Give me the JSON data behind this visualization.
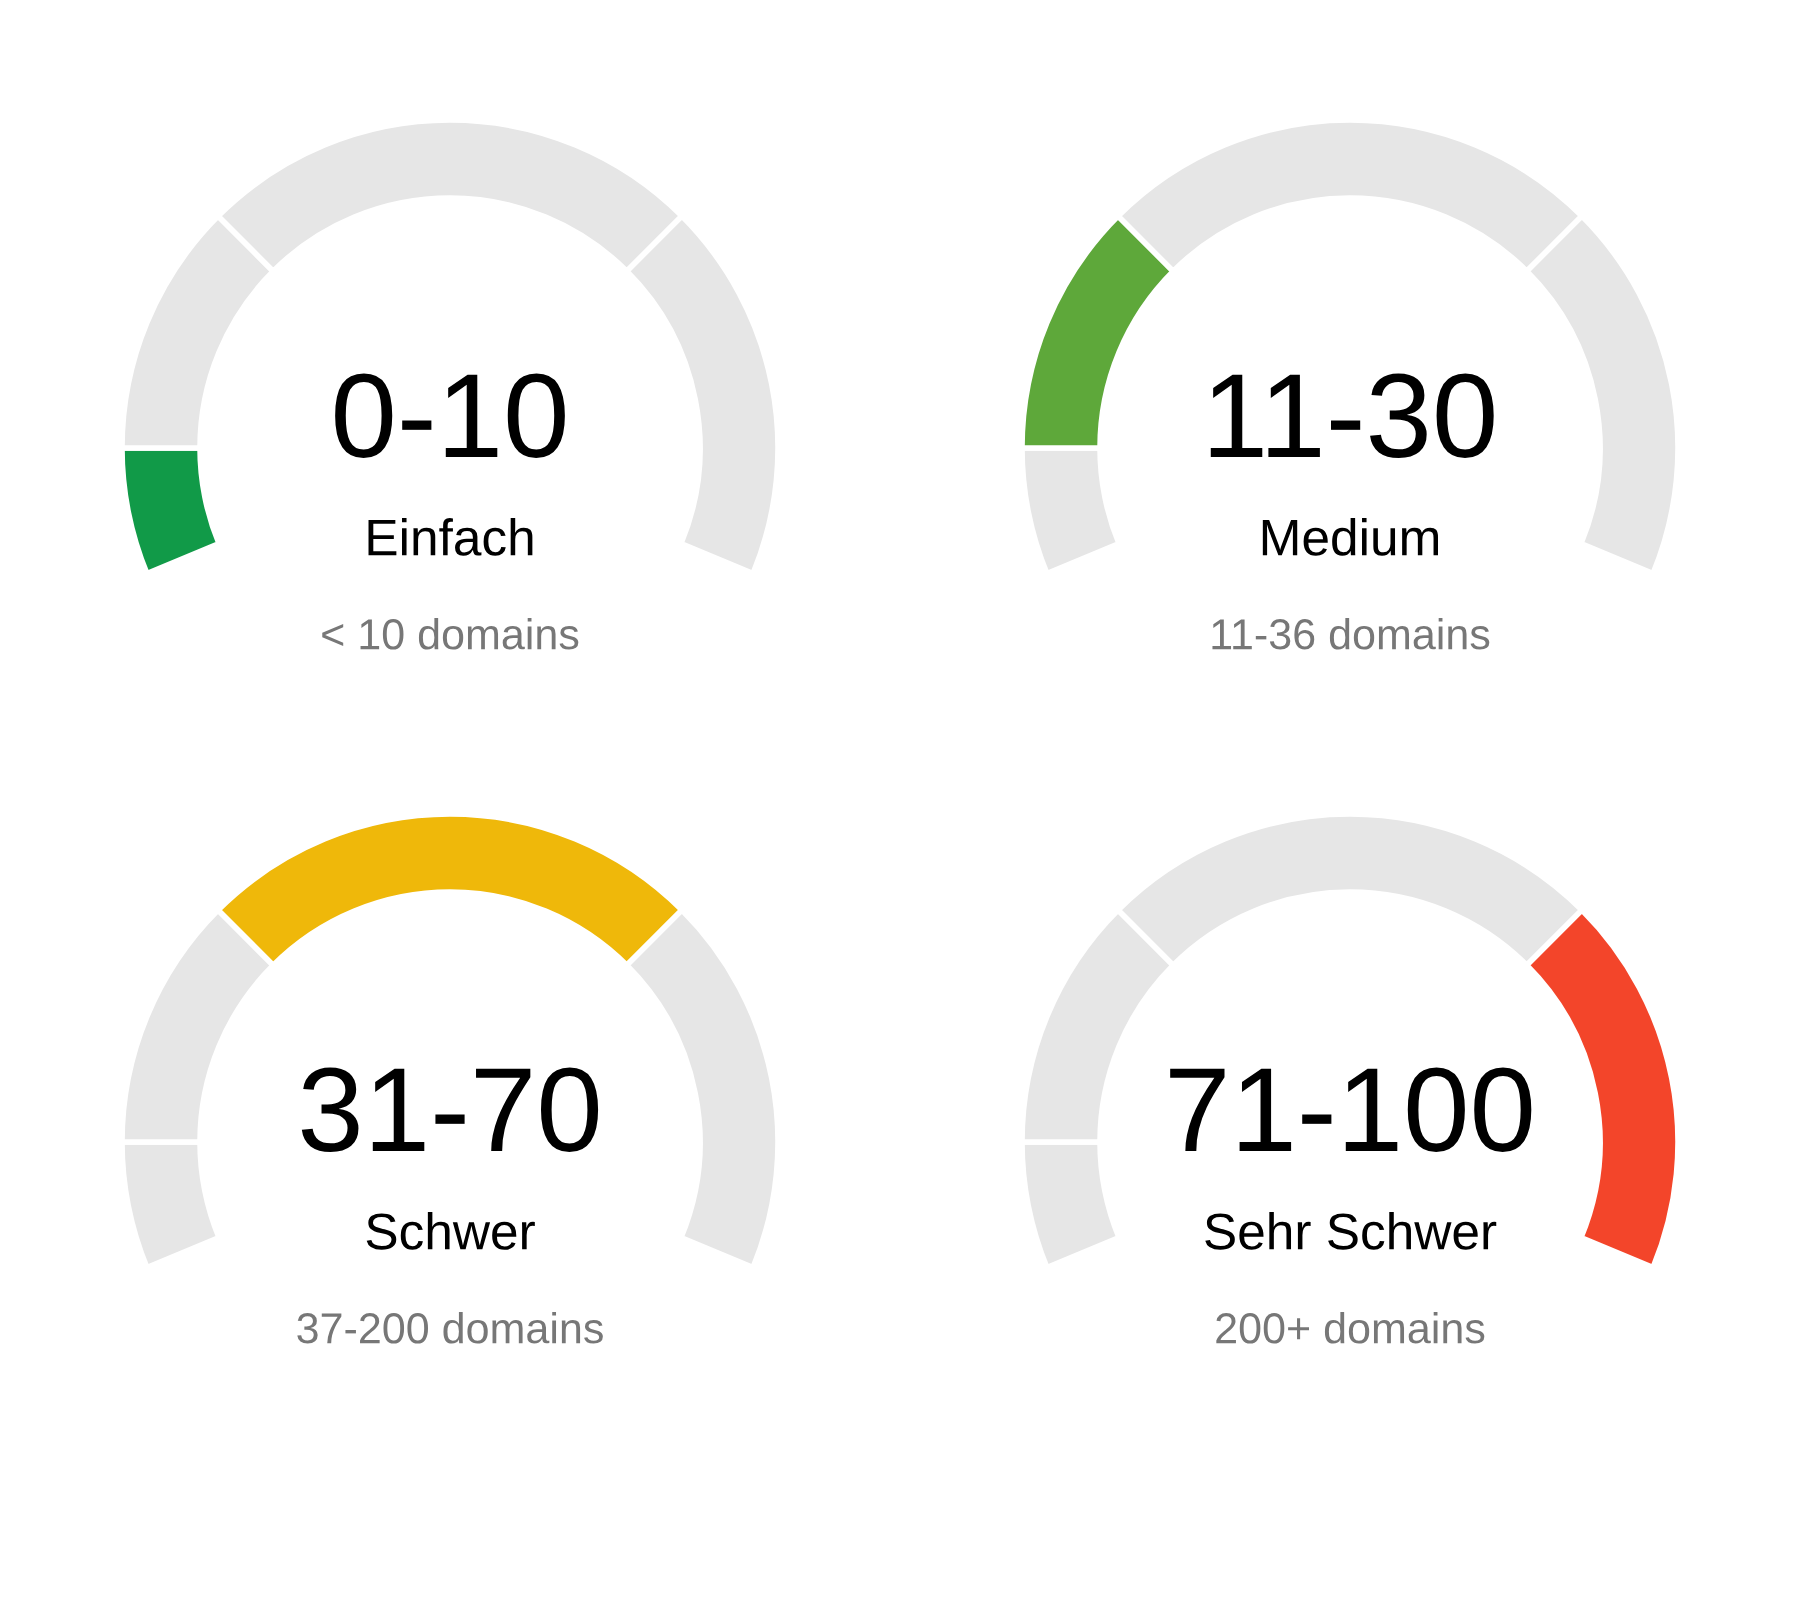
{
  "chart_data": [
    {
      "type": "donut",
      "title": "0-10",
      "subtitle": "Einfach",
      "annotations": [
        "< 10 domains"
      ],
      "categories": [
        null,
        null,
        null,
        null
      ],
      "values": [
        10,
        20,
        40,
        30
      ],
      "colors": [
        "#119a48",
        "#e6e6e6",
        "#e6e6e6",
        "#e6e6e6"
      ]
    },
    {
      "type": "donut",
      "title": "11-30",
      "subtitle": "Medium",
      "annotations": [
        "11-36 domains"
      ],
      "categories": [
        null,
        null,
        null,
        null
      ],
      "values": [
        10,
        20,
        40,
        30
      ],
      "colors": [
        "#e6e6e6",
        "#5ea83a",
        "#e6e6e6",
        "#e6e6e6"
      ]
    },
    {
      "type": "donut",
      "title": "31-70",
      "subtitle": "Schwer",
      "annotations": [
        "37-200 domains"
      ],
      "categories": [
        null,
        null,
        null,
        null
      ],
      "values": [
        10,
        20,
        40,
        30
      ],
      "colors": [
        "#e6e6e6",
        "#e6e6e6",
        "#efb80a",
        "#e6e6e6"
      ]
    },
    {
      "type": "donut",
      "title": "71-100",
      "subtitle": "Sehr Schwer",
      "annotations": [
        "200+ domains"
      ],
      "categories": [
        null,
        null,
        null,
        null
      ],
      "values": [
        10,
        20,
        40,
        30
      ],
      "colors": [
        "#e6e6e6",
        "#e6e6e6",
        "#e6e6e6",
        "#f3452a"
      ]
    }
  ]
}
